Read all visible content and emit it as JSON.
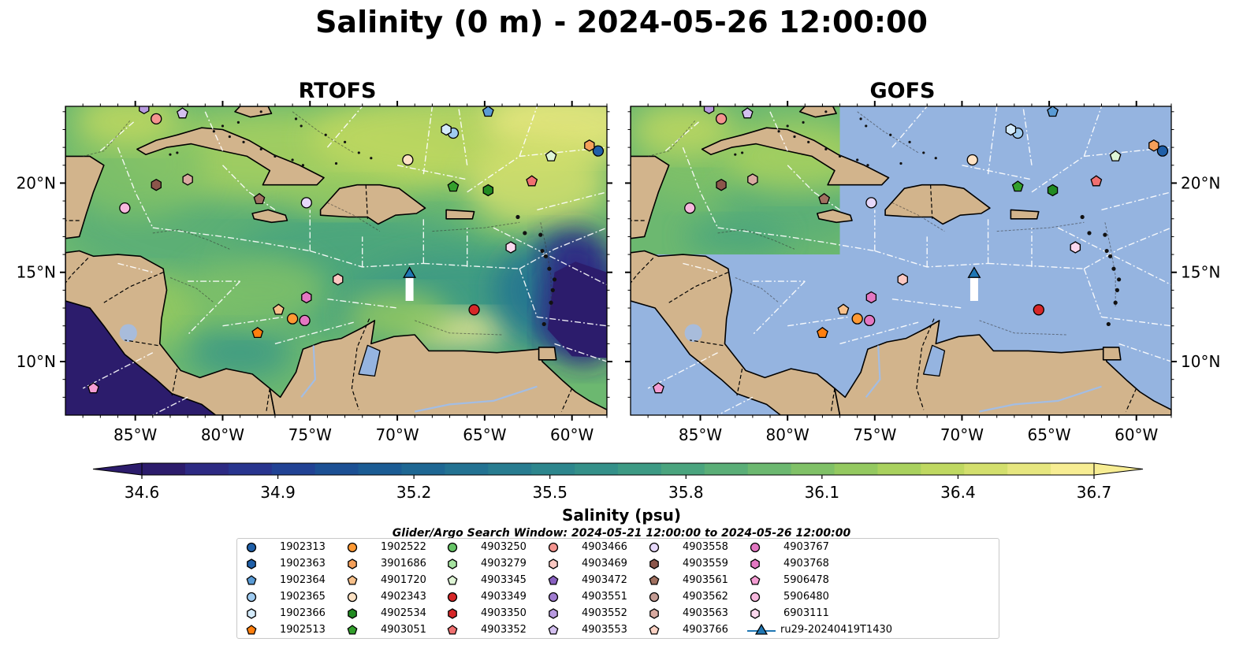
{
  "title": "Salinity (0 m) - 2024-05-26 12:00:00",
  "colorbar": {
    "label": "Salinity (psu)",
    "ticks": [
      "34.6",
      "34.9",
      "35.2",
      "35.5",
      "35.8",
      "36.1",
      "36.4",
      "36.7"
    ],
    "range": [
      34.6,
      36.7
    ],
    "extend": "both",
    "colors": [
      "#2c1c6c",
      "#2d2a83",
      "#28348e",
      "#214294",
      "#1c5094",
      "#1b5c94",
      "#1e6793",
      "#237292",
      "#287c90",
      "#2d868d",
      "#349089",
      "#3d9a84",
      "#4aa47e",
      "#5aae77",
      "#6cb870",
      "#80c167",
      "#94c960",
      "#a9d15e",
      "#bfd861",
      "#d3df6d",
      "#e6e67f",
      "#f7ed93"
    ]
  },
  "search_window_note": "Glider/Argo Search Window: 2024-05-21 12:00:00 to 2024-05-26 12:00:00",
  "colors": {
    "land": "#d2b48c",
    "gofs_fill": "#95b4e0",
    "river": "#a3bde3",
    "boundary": "#ffffff"
  },
  "chart_data": [
    {
      "type": "heatmap",
      "title": "RTOFS",
      "variable": "Salinity (psu)",
      "depth": "0 m",
      "xlim": [
        -89,
        -58
      ],
      "ylim": [
        7,
        24.3
      ],
      "xticks": [
        "85°W",
        "80°W",
        "75°W",
        "70°W",
        "65°W",
        "60°W"
      ],
      "yticks": [
        "10°N",
        "15°N",
        "20°N"
      ],
      "field_description_regions": [
        {
          "region": "western Caribbean interior",
          "approx_salinity": 36.2
        },
        {
          "region": "north of Hispaniola / Atlantic",
          "approx_salinity": 36.5
        },
        {
          "region": "Pacific side",
          "approx_salinity": 34.6
        },
        {
          "region": "east of Lesser Antilles",
          "approx_salinity": 34.7
        }
      ]
    },
    {
      "type": "heatmap",
      "title": "GOFS",
      "variable": "Salinity (psu)",
      "depth": "0 m",
      "xlim": [
        -89,
        -58
      ],
      "ylim": [
        7,
        24.3
      ],
      "xticks": [
        "85°W",
        "80°W",
        "75°W",
        "70°W",
        "65°W",
        "60°W"
      ],
      "yticks": [
        "10°N",
        "15°N",
        "20°N"
      ],
      "field_description_regions": [
        {
          "region": "NW sub-domain",
          "approx_salinity": 36.2
        },
        {
          "region": "remainder",
          "approx_salinity": null
        }
      ]
    }
  ],
  "floats": [
    {
      "id": "1902313",
      "marker": "circle",
      "color": "#1f5fa8",
      "lon": -58.5,
      "lat": 21.8
    },
    {
      "id": "1902363",
      "marker": "hexagon",
      "color": "#1f5fa8",
      "lon": null,
      "lat": null
    },
    {
      "id": "1902364",
      "marker": "pentagon",
      "color": "#5a9bd5",
      "lon": -64.8,
      "lat": 24.0
    },
    {
      "id": "1902365",
      "marker": "circle",
      "color": "#9fcbf0",
      "lon": -66.8,
      "lat": 22.8
    },
    {
      "id": "1902366",
      "marker": "hexagon",
      "color": "#d4ebfb",
      "lon": -67.2,
      "lat": 23.0
    },
    {
      "id": "1902513",
      "marker": "pentagon",
      "color": "#ff7f0e",
      "lon": -78.0,
      "lat": 11.6
    },
    {
      "id": "1902522",
      "marker": "circle",
      "color": "#ff9933",
      "lon": -76.0,
      "lat": 12.4
    },
    {
      "id": "3901686",
      "marker": "hexagon",
      "color": "#f5a05a",
      "lon": -59.0,
      "lat": 22.1
    },
    {
      "id": "4901720",
      "marker": "pentagon",
      "color": "#f7c08a",
      "lon": -76.8,
      "lat": 12.9
    },
    {
      "id": "4902343",
      "marker": "circle",
      "color": "#fde2c4",
      "lon": -69.4,
      "lat": 21.3
    },
    {
      "id": "4902534",
      "marker": "hexagon",
      "color": "#228b22",
      "lon": -64.8,
      "lat": 19.6
    },
    {
      "id": "4903051",
      "marker": "pentagon",
      "color": "#33a02c",
      "lon": -66.8,
      "lat": 19.8
    },
    {
      "id": "4903250",
      "marker": "circle",
      "color": "#66c466",
      "lon": null,
      "lat": null
    },
    {
      "id": "4903279",
      "marker": "hexagon",
      "color": "#a6e3a0",
      "lon": null,
      "lat": null
    },
    {
      "id": "4903345",
      "marker": "pentagon",
      "color": "#dff5d6",
      "lon": -61.2,
      "lat": 21.5
    },
    {
      "id": "4903349",
      "marker": "circle",
      "color": "#d62728",
      "lon": -65.6,
      "lat": 12.9
    },
    {
      "id": "4903350",
      "marker": "hexagon",
      "color": "#d62728",
      "lon": null,
      "lat": null
    },
    {
      "id": "4903352",
      "marker": "pentagon",
      "color": "#f07070",
      "lon": -62.3,
      "lat": 20.1
    },
    {
      "id": "4903466",
      "marker": "circle",
      "color": "#f4948f",
      "lon": -83.8,
      "lat": 23.6
    },
    {
      "id": "4903469",
      "marker": "hexagon",
      "color": "#fbc8c2",
      "lon": -73.4,
      "lat": 14.6
    },
    {
      "id": "4903472",
      "marker": "pentagon",
      "color": "#8860c0",
      "lon": null,
      "lat": null
    },
    {
      "id": "4903551",
      "marker": "circle",
      "color": "#a07cd0",
      "lon": null,
      "lat": null
    },
    {
      "id": "4903552",
      "marker": "hexagon",
      "color": "#b89ae0",
      "lon": -84.5,
      "lat": 24.2
    },
    {
      "id": "4903553",
      "marker": "pentagon",
      "color": "#d4c0f0",
      "lon": -82.3,
      "lat": 23.9
    },
    {
      "id": "4903558",
      "marker": "circle",
      "color": "#e6d8fa",
      "lon": -75.2,
      "lat": 18.9
    },
    {
      "id": "4903559",
      "marker": "hexagon",
      "color": "#8c564b",
      "lon": -83.8,
      "lat": 19.9
    },
    {
      "id": "4903561",
      "marker": "pentagon",
      "color": "#a07060",
      "lon": -77.9,
      "lat": 19.1
    },
    {
      "id": "4903562",
      "marker": "circle",
      "color": "#c49c94",
      "lon": null,
      "lat": null
    },
    {
      "id": "4903563",
      "marker": "hexagon",
      "color": "#d9aaa0",
      "lon": -82.0,
      "lat": 20.2
    },
    {
      "id": "4903766",
      "marker": "pentagon",
      "color": "#fbd2c4",
      "lon": null,
      "lat": null
    },
    {
      "id": "4903767",
      "marker": "circle",
      "color": "#e377c2",
      "lon": -75.3,
      "lat": 12.3
    },
    {
      "id": "4903768",
      "marker": "hexagon",
      "color": "#e377c2",
      "lon": -75.2,
      "lat": 13.6
    },
    {
      "id": "5906478",
      "marker": "pentagon",
      "color": "#f59dd3",
      "lon": -87.4,
      "lat": 8.5
    },
    {
      "id": "5906480",
      "marker": "circle",
      "color": "#f8b8de",
      "lon": -85.6,
      "lat": 18.6
    },
    {
      "id": "6903111",
      "marker": "hexagon",
      "color": "#fcd8ee",
      "lon": -63.5,
      "lat": 16.4
    },
    {
      "id": "ru29-20240419T1430",
      "marker": "triangle",
      "color": "#1f77b4",
      "lon": -69.3,
      "lat": 14.9,
      "track_to_lat": 13.4
    }
  ],
  "legend": {
    "columns": 7,
    "placement": "bottom-center"
  }
}
